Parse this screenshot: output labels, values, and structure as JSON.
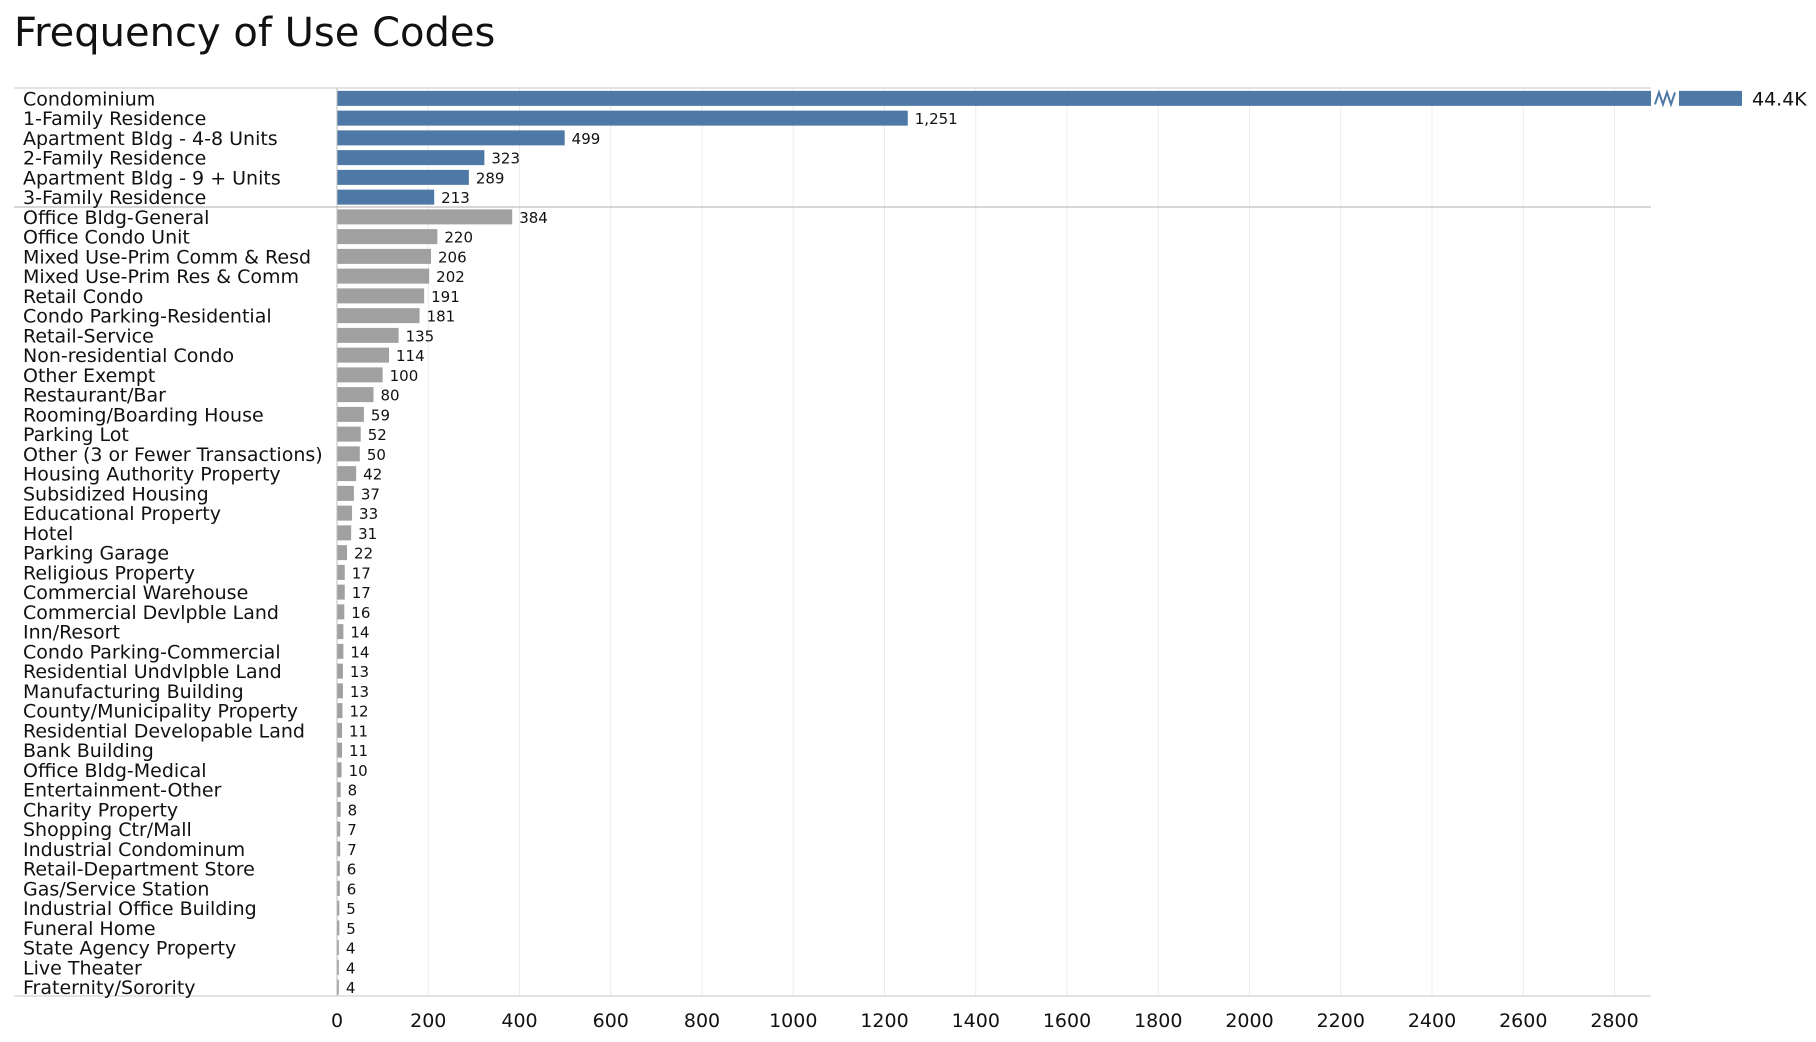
{
  "title": "Frequency of Use Codes",
  "colors": {
    "residential": "#4e79a7",
    "other": "#a0a0a0",
    "grid": "#ececec",
    "separator": "#c8c8c8"
  },
  "chart_data": {
    "type": "bar",
    "orientation": "horizontal",
    "title": "Frequency of Use Codes",
    "xlim": [
      0,
      2880
    ],
    "x_ticks": [
      "0",
      "200",
      "400",
      "600",
      "800",
      "1000",
      "1200",
      "1400",
      "1600",
      "1800",
      "2000",
      "2200",
      "2400",
      "2600",
      "2800"
    ],
    "grid": true,
    "axis_break": true,
    "groups": [
      {
        "color": "#4e79a7",
        "items": [
          {
            "label": "Condominium",
            "value": 44400,
            "value_label": "44.4K"
          },
          {
            "label": "1-Family Residence",
            "value": 1251,
            "value_label": "1,251"
          },
          {
            "label": "Apartment Bldg - 4-8 Units",
            "value": 499,
            "value_label": "499"
          },
          {
            "label": "2-Family Residence",
            "value": 323,
            "value_label": "323"
          },
          {
            "label": "Apartment Bldg - 9 + Units",
            "value": 289,
            "value_label": "289"
          },
          {
            "label": "3-Family Residence",
            "value": 213,
            "value_label": "213"
          }
        ]
      },
      {
        "color": "#a0a0a0",
        "items": [
          {
            "label": "Office Bldg-General",
            "value": 384,
            "value_label": "384"
          },
          {
            "label": "Office Condo Unit",
            "value": 220,
            "value_label": "220"
          },
          {
            "label": "Mixed Use-Prim Comm & Resd",
            "value": 206,
            "value_label": "206"
          },
          {
            "label": "Mixed Use-Prim Res & Comm",
            "value": 202,
            "value_label": "202"
          },
          {
            "label": "Retail Condo",
            "value": 191,
            "value_label": "191"
          },
          {
            "label": "Condo Parking-Residential",
            "value": 181,
            "value_label": "181"
          },
          {
            "label": "Retail-Service",
            "value": 135,
            "value_label": "135"
          },
          {
            "label": "Non-residential Condo",
            "value": 114,
            "value_label": "114"
          },
          {
            "label": "Other Exempt",
            "value": 100,
            "value_label": "100"
          },
          {
            "label": "Restaurant/Bar",
            "value": 80,
            "value_label": "80"
          },
          {
            "label": "Rooming/Boarding House",
            "value": 59,
            "value_label": "59"
          },
          {
            "label": "Parking Lot",
            "value": 52,
            "value_label": "52"
          },
          {
            "label": "Other (3 or Fewer Transactions)",
            "value": 50,
            "value_label": "50"
          },
          {
            "label": "Housing Authority Property",
            "value": 42,
            "value_label": "42"
          },
          {
            "label": "Subsidized Housing",
            "value": 37,
            "value_label": "37"
          },
          {
            "label": "Educational Property",
            "value": 33,
            "value_label": "33"
          },
          {
            "label": "Hotel",
            "value": 31,
            "value_label": "31"
          },
          {
            "label": "Parking Garage",
            "value": 22,
            "value_label": "22"
          },
          {
            "label": "Religious Property",
            "value": 17,
            "value_label": "17"
          },
          {
            "label": "Commercial Warehouse",
            "value": 17,
            "value_label": "17"
          },
          {
            "label": "Commercial Devlpble Land",
            "value": 16,
            "value_label": "16"
          },
          {
            "label": "Inn/Resort",
            "value": 14,
            "value_label": "14"
          },
          {
            "label": "Condo Parking-Commercial",
            "value": 14,
            "value_label": "14"
          },
          {
            "label": "Residential Undvlpble Land",
            "value": 13,
            "value_label": "13"
          },
          {
            "label": "Manufacturing Building",
            "value": 13,
            "value_label": "13"
          },
          {
            "label": "County/Municipality Property",
            "value": 12,
            "value_label": "12"
          },
          {
            "label": "Residential Developable Land",
            "value": 11,
            "value_label": "11"
          },
          {
            "label": "Bank Building",
            "value": 11,
            "value_label": "11"
          },
          {
            "label": "Office Bldg-Medical",
            "value": 10,
            "value_label": "10"
          },
          {
            "label": "Entertainment-Other",
            "value": 8,
            "value_label": "8"
          },
          {
            "label": "Charity Property",
            "value": 8,
            "value_label": "8"
          },
          {
            "label": "Shopping Ctr/Mall",
            "value": 7,
            "value_label": "7"
          },
          {
            "label": "Industrial Condominum",
            "value": 7,
            "value_label": "7"
          },
          {
            "label": "Retail-Department Store",
            "value": 6,
            "value_label": "6"
          },
          {
            "label": "Gas/Service Station",
            "value": 6,
            "value_label": "6"
          },
          {
            "label": "Industrial Office Building",
            "value": 5,
            "value_label": "5"
          },
          {
            "label": "Funeral Home",
            "value": 5,
            "value_label": "5"
          },
          {
            "label": "State Agency Property",
            "value": 4,
            "value_label": "4"
          },
          {
            "label": "Live Theater",
            "value": 4,
            "value_label": "4"
          },
          {
            "label": "Fraternity/Sorority",
            "value": 4,
            "value_label": "4"
          }
        ]
      }
    ]
  }
}
